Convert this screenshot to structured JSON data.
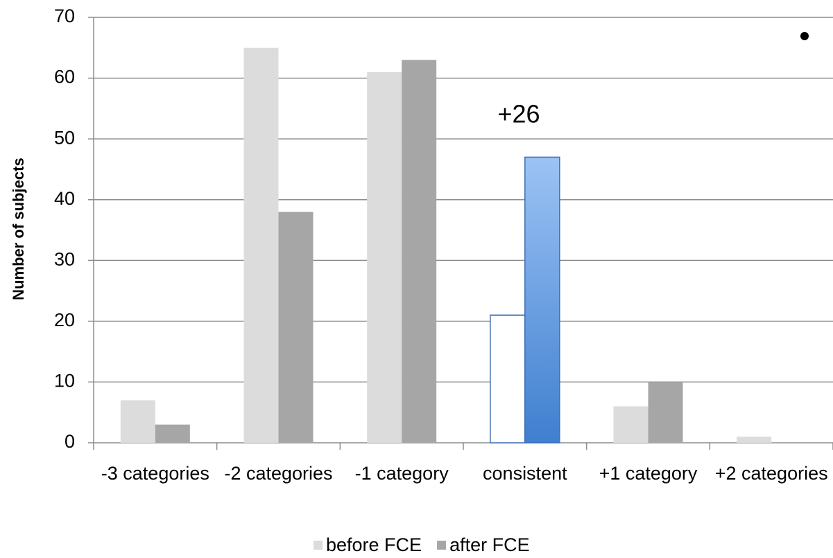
{
  "chart_data": {
    "type": "bar",
    "y_label": "Number of subjects",
    "annotation": "+26",
    "categories": [
      "-3 categories",
      "-2 categories",
      "-1 category",
      "consistent",
      "+1 category",
      "+2 categories"
    ],
    "series": [
      {
        "name": "before FCE",
        "color": "#dcdcdc",
        "values": [
          7,
          65,
          61,
          21,
          6,
          1
        ],
        "colors": [
          "#dcdcdc",
          "#dcdcdc",
          "#dcdcdc",
          "#ffffff",
          "#dcdcdc",
          "#dcdcdc"
        ]
      },
      {
        "name": "after FCE",
        "color": "#a6a6a6",
        "values": [
          3,
          38,
          63,
          47,
          10,
          0
        ],
        "colors": [
          "#a6a6a6",
          "#a6a6a6",
          "#a6a6a6",
          "#5b95dd",
          "#a6a6a6",
          "#a6a6a6"
        ]
      }
    ],
    "ylim": [
      0,
      70
    ],
    "yticks": [
      0,
      10,
      20,
      30,
      40,
      50,
      60,
      70
    ],
    "grid": true,
    "legend": "bottom"
  }
}
